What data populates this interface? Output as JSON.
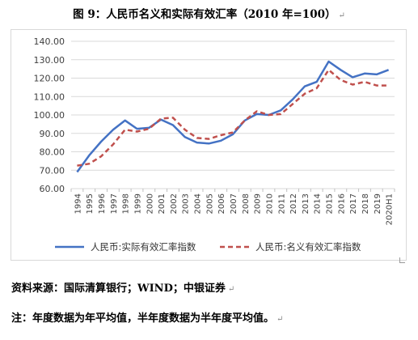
{
  "figure": {
    "title": "图 9：人民币名义和实际有效汇率（2010 年=100）",
    "source": "资料来源：国际清算银行；WIND；中银证券",
    "note": "注：年度数据为年平均值，半年度数据为半年度平均值。"
  },
  "chart_data": {
    "type": "line",
    "categories": [
      "1994",
      "1995",
      "1996",
      "1997",
      "1998",
      "1999",
      "2000",
      "2001",
      "2002",
      "2003",
      "2004",
      "2005",
      "2006",
      "2007",
      "2008",
      "2009",
      "2010",
      "2011",
      "2012",
      "2013",
      "2014",
      "2015",
      "2016",
      "2017",
      "2018",
      "2019",
      "2020H1"
    ],
    "y_ticks": [
      "60.00",
      "70.00",
      "80.00",
      "90.00",
      "100.00",
      "110.00",
      "120.00",
      "130.00",
      "140.00"
    ],
    "ylim": [
      60,
      140
    ],
    "grid": true,
    "legend_position": "bottom",
    "series": [
      {
        "name": "人民币:实际有效汇率指数",
        "color": "#4472c4",
        "style": "solid",
        "values": [
          69,
          78,
          85.5,
          92,
          97,
          92.5,
          93,
          97.5,
          94.5,
          88,
          85,
          84.5,
          86,
          89.5,
          97,
          100.5,
          100,
          102.5,
          108.5,
          115.5,
          118,
          129,
          124.5,
          120.5,
          122.5,
          122,
          124.5
        ]
      },
      {
        "name": "人民币:名义有效汇率指数",
        "color": "#c0504d",
        "style": "dashed",
        "values": [
          72.5,
          73.5,
          77.5,
          84,
          92,
          91,
          92.5,
          98,
          98.5,
          92,
          87.5,
          87,
          89,
          90.5,
          97,
          102,
          100,
          100.5,
          106,
          111.5,
          114.5,
          124.5,
          119,
          116.5,
          118,
          116,
          116
        ]
      }
    ]
  }
}
